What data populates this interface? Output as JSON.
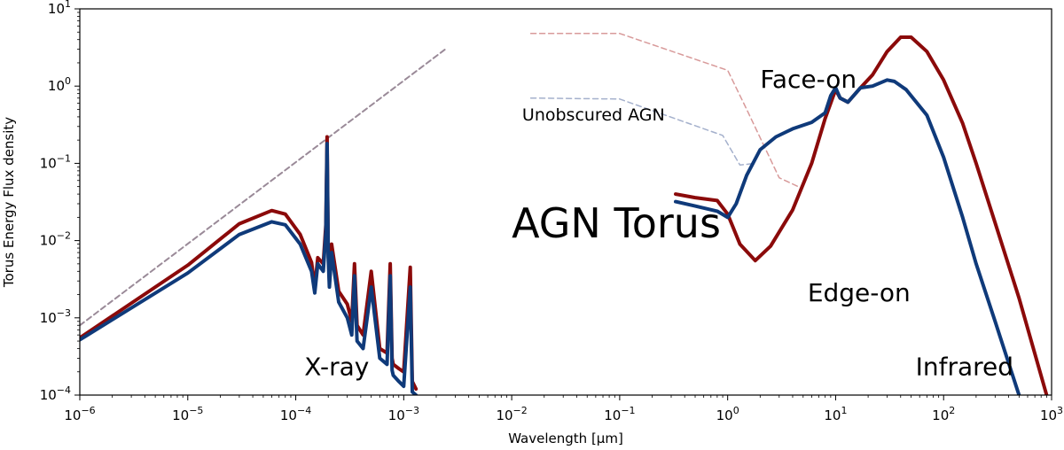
{
  "chart_data": {
    "type": "line",
    "title": "",
    "xlabel": "Wavelength [µm]",
    "ylabel": "Torus Energy Flux density",
    "xscale": "log",
    "yscale": "log",
    "xlim": [
      1e-06,
      1000
    ],
    "ylim": [
      0.0001,
      10
    ],
    "grid": false,
    "x_ticks": [
      {
        "value": 1e-06,
        "base": "10",
        "exp": "−6"
      },
      {
        "value": 1e-05,
        "base": "10",
        "exp": "−5"
      },
      {
        "value": 0.0001,
        "base": "10",
        "exp": "−4"
      },
      {
        "value": 0.001,
        "base": "10",
        "exp": "−3"
      },
      {
        "value": 0.01,
        "base": "10",
        "exp": "−2"
      },
      {
        "value": 0.1,
        "base": "10",
        "exp": "−1"
      },
      {
        "value": 1,
        "base": "10",
        "exp": "0"
      },
      {
        "value": 10,
        "base": "10",
        "exp": "1"
      },
      {
        "value": 100,
        "base": "10",
        "exp": "2"
      },
      {
        "value": 1000,
        "base": "10",
        "exp": "3"
      }
    ],
    "y_ticks": [
      {
        "value": 0.0001,
        "base": "10",
        "exp": "−4"
      },
      {
        "value": 0.001,
        "base": "10",
        "exp": "−3"
      },
      {
        "value": 0.01,
        "base": "10",
        "exp": "−2"
      },
      {
        "value": 0.1,
        "base": "10",
        "exp": "−1"
      },
      {
        "value": 1,
        "base": "10",
        "exp": "0"
      },
      {
        "value": 10,
        "base": "10",
        "exp": "1"
      }
    ],
    "annotations": [
      {
        "text": "AGN Torus",
        "x": 0.01,
        "y": 0.011,
        "size": "large",
        "color": "#000000"
      },
      {
        "text": "Unobscured AGN",
        "x": 0.0125,
        "y": 0.36,
        "size": "small",
        "color": "#000000"
      },
      {
        "text": "Face-on",
        "x": 2.0,
        "y": 0.95,
        "size": "medium",
        "color": "#0f3a7a"
      },
      {
        "text": "Edge-on",
        "x": 5.5,
        "y": 0.00165,
        "size": "medium",
        "color": "#8b0a0a"
      },
      {
        "text": "X-ray",
        "x": 0.00012,
        "y": 0.00018,
        "size": "medium",
        "color": "#000000"
      },
      {
        "text": "Infrared",
        "x": 55,
        "y": 0.00018,
        "size": "medium",
        "color": "#000000"
      }
    ],
    "series": [
      {
        "id": "unobscured-xray",
        "color": "#9a8a98",
        "dashed": true,
        "width": 2,
        "x": [
          1e-06,
          0.0025
        ],
        "y": [
          0.0008,
          3.1
        ]
      },
      {
        "id": "unobscured-ir-red",
        "color": "#d89a9a",
        "dashed": true,
        "width": 1.5,
        "x": [
          0.015,
          0.1,
          1.0,
          1.5,
          3.0,
          4.5
        ],
        "y": [
          4.8,
          4.8,
          1.6,
          0.5,
          0.065,
          0.05
        ]
      },
      {
        "id": "unobscured-ir-blue",
        "color": "#a4b0cc",
        "dashed": true,
        "width": 1.5,
        "x": [
          0.015,
          0.1,
          0.9,
          1.3,
          1.8
        ],
        "y": [
          0.7,
          0.68,
          0.23,
          0.095,
          0.1
        ]
      },
      {
        "id": "edge-on-xray",
        "color": "#8b0a0a",
        "dashed": false,
        "width": 4,
        "x": [
          1e-06,
          1e-05,
          3e-05,
          6e-05,
          8e-05,
          0.00011,
          0.00014,
          0.00015,
          0.00016,
          0.00018,
          0.00019,
          0.000195,
          0.0002,
          0.000205,
          0.000215,
          0.00025,
          0.0003,
          0.00033,
          0.00035,
          0.00037,
          0.00042,
          0.0005,
          0.0006,
          0.0007,
          0.00075,
          0.00078,
          0.0008,
          0.0009,
          0.001,
          0.00115,
          0.0012,
          0.0013
        ],
        "y": [
          0.00055,
          0.0048,
          0.0165,
          0.0245,
          0.022,
          0.012,
          0.0052,
          0.0025,
          0.006,
          0.005,
          0.016,
          0.22,
          0.007,
          0.003,
          0.009,
          0.0022,
          0.0015,
          0.0009,
          0.005,
          0.0008,
          0.0006,
          0.004,
          0.0004,
          0.00035,
          0.005,
          0.0003,
          0.00025,
          0.00022,
          0.0002,
          0.0045,
          0.00015,
          0.00012
        ]
      },
      {
        "id": "face-on-xray",
        "color": "#0f3a7a",
        "dashed": false,
        "width": 4,
        "x": [
          1e-06,
          1e-05,
          3e-05,
          6e-05,
          8e-05,
          0.00011,
          0.00014,
          0.00015,
          0.00016,
          0.00018,
          0.00019,
          0.000195,
          0.0002,
          0.000205,
          0.000215,
          0.00025,
          0.0003,
          0.00033,
          0.00035,
          0.00037,
          0.00042,
          0.0005,
          0.0006,
          0.0007,
          0.00075,
          0.00078,
          0.0008,
          0.0009,
          0.001,
          0.00115,
          0.0012,
          0.0013
        ],
        "y": [
          0.00052,
          0.0038,
          0.012,
          0.0175,
          0.016,
          0.009,
          0.004,
          0.0021,
          0.005,
          0.004,
          0.013,
          0.18,
          0.006,
          0.0025,
          0.007,
          0.0016,
          0.001,
          0.0006,
          0.0035,
          0.0005,
          0.0004,
          0.0025,
          0.0003,
          0.00025,
          0.0035,
          0.00021,
          0.00018,
          0.00015,
          0.00013,
          0.0025,
          0.00011,
          0.0001
        ]
      },
      {
        "id": "edge-on-ir",
        "color": "#8b0a0a",
        "dashed": false,
        "width": 4,
        "x": [
          0.33,
          0.5,
          0.8,
          1.0,
          1.3,
          1.8,
          2.5,
          4,
          6,
          8,
          9,
          10,
          11,
          13,
          17,
          22,
          30,
          40,
          50,
          70,
          100,
          150,
          200,
          300,
          500,
          900
        ],
        "y": [
          0.04,
          0.036,
          0.033,
          0.022,
          0.009,
          0.0055,
          0.0085,
          0.025,
          0.1,
          0.38,
          0.6,
          0.9,
          0.7,
          0.62,
          0.95,
          1.4,
          2.8,
          4.3,
          4.3,
          2.8,
          1.2,
          0.33,
          0.1,
          0.017,
          0.0018,
          0.0001
        ]
      },
      {
        "id": "face-on-ir",
        "color": "#0f3a7a",
        "dashed": false,
        "width": 4,
        "x": [
          0.33,
          0.5,
          0.8,
          1.0,
          1.2,
          1.5,
          2.0,
          2.8,
          4,
          6,
          8,
          9,
          10,
          11,
          13,
          17,
          22,
          30,
          35,
          45,
          70,
          100,
          150,
          200,
          300,
          500
        ],
        "y": [
          0.032,
          0.028,
          0.024,
          0.02,
          0.03,
          0.07,
          0.15,
          0.22,
          0.28,
          0.34,
          0.45,
          0.75,
          0.95,
          0.7,
          0.62,
          0.95,
          1.0,
          1.2,
          1.15,
          0.9,
          0.42,
          0.12,
          0.02,
          0.005,
          0.0009,
          0.0001
        ]
      }
    ]
  }
}
